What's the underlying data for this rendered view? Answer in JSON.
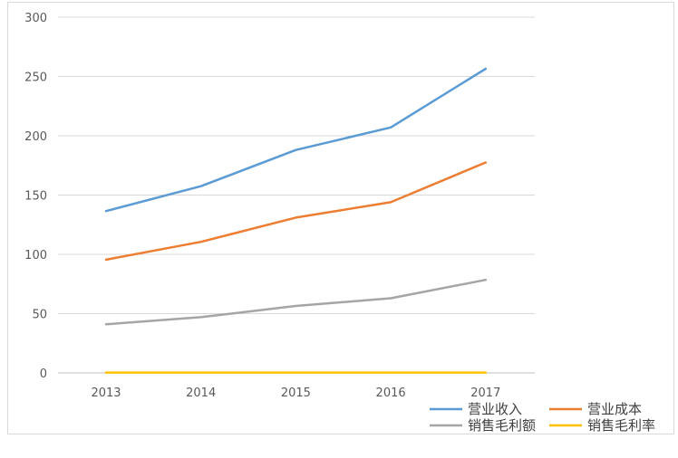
{
  "chart_data": {
    "type": "line",
    "title": "",
    "xlabel": "",
    "ylabel": "",
    "x": [
      "2013",
      "2014",
      "2015",
      "2016",
      "2017"
    ],
    "ylim": [
      0,
      300
    ],
    "yticks": [
      "0",
      "50",
      "100",
      "150",
      "200",
      "250",
      "300"
    ],
    "grid": true,
    "legend_position": "bottom-right",
    "series": [
      {
        "name": "营业收入",
        "color": "#5b9bd5",
        "values": [
          136.5,
          157.5,
          188,
          207,
          256.5
        ]
      },
      {
        "name": "营业成本",
        "color": "#ed7d31",
        "values": [
          95.5,
          110.5,
          131,
          144,
          177.5
        ]
      },
      {
        "name": "销售毛利额",
        "color": "#a5a5a5",
        "values": [
          41,
          47,
          56.5,
          63,
          78.5
        ]
      },
      {
        "name": "销售毛利率",
        "color": "#ffc000",
        "values": [
          0.3,
          0.3,
          0.3,
          0.3,
          0.31
        ]
      }
    ]
  }
}
